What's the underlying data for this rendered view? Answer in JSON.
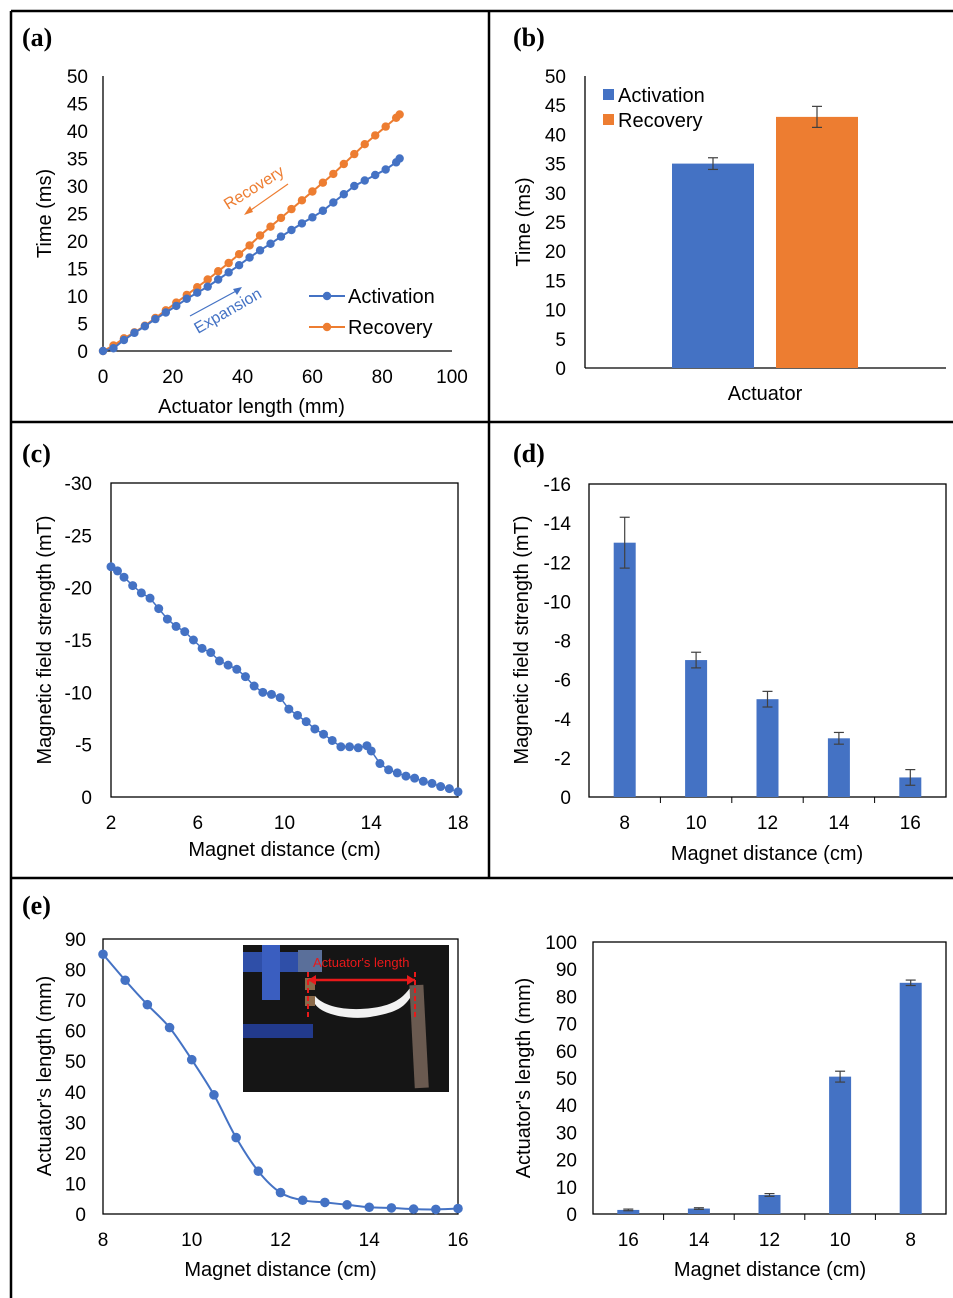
{
  "colors": {
    "blue": "#4472C4",
    "orange": "#ED7D31",
    "photo_label": "#E8191A"
  },
  "chart_data": [
    {
      "id": "a",
      "panel_label": "(a)",
      "type": "line",
      "xlabel": "Actuator length (mm)",
      "ylabel": "Time (ms)",
      "xlim": [
        0,
        100
      ],
      "ylim": [
        0,
        50
      ],
      "xticks": [
        0,
        20,
        40,
        60,
        80,
        100
      ],
      "yticks": [
        0,
        5,
        10,
        15,
        20,
        25,
        30,
        35,
        40,
        45,
        50
      ],
      "legend": "bottom-right",
      "annotations": [
        {
          "text": "Recovery",
          "color": "orange"
        },
        {
          "text": "Expansion",
          "color": "blue"
        }
      ],
      "series": [
        {
          "name": "Activation",
          "color": "blue",
          "x": [
            0,
            3,
            6,
            9,
            12,
            15,
            18,
            21,
            24,
            27,
            30,
            33,
            36,
            39,
            42,
            45,
            48,
            51,
            54,
            57,
            60,
            63,
            66,
            69,
            72,
            75,
            78,
            81,
            84,
            85
          ],
          "y": [
            0,
            0.5,
            2,
            3.3,
            4.5,
            5.8,
            7,
            8.2,
            9.5,
            10.6,
            11.7,
            13,
            14.3,
            15.6,
            17,
            18.3,
            19.5,
            20.8,
            22,
            23.2,
            24.3,
            25.5,
            27,
            28.5,
            30,
            31,
            32,
            33,
            34.3,
            35
          ]
        },
        {
          "name": "Recovery",
          "color": "orange",
          "x": [
            0,
            3,
            6,
            9,
            12,
            15,
            18,
            21,
            24,
            27,
            30,
            33,
            36,
            39,
            42,
            45,
            48,
            51,
            54,
            57,
            60,
            63,
            66,
            69,
            72,
            75,
            78,
            81,
            84,
            85
          ],
          "y": [
            0,
            1,
            2.3,
            3.4,
            4.6,
            6,
            7.4,
            8.8,
            10.2,
            11.6,
            13,
            14.5,
            16,
            17.6,
            19.2,
            21,
            22.6,
            24.2,
            25.8,
            27.4,
            29,
            30.6,
            32.2,
            34,
            35.8,
            37.6,
            39.2,
            40.8,
            42.4,
            43
          ]
        }
      ]
    },
    {
      "id": "b",
      "panel_label": "(b)",
      "type": "bar",
      "xlabel": "Actuator",
      "ylabel": "Time (ms)",
      "ylim": [
        0,
        50
      ],
      "yticks": [
        0,
        5,
        10,
        15,
        20,
        25,
        30,
        35,
        40,
        45,
        50
      ],
      "legend": "top-left",
      "series": [
        {
          "name": "Activation",
          "color": "blue",
          "value": 35,
          "error": 1
        },
        {
          "name": "Recovery",
          "color": "orange",
          "value": 43,
          "error": 1.8
        }
      ]
    },
    {
      "id": "c",
      "panel_label": "(c)",
      "type": "scatter",
      "xlabel": "Magnet distance (cm)",
      "ylabel": "Magnetic field strength (mT)",
      "xlim": [
        2,
        18
      ],
      "ylim": [
        0,
        -30
      ],
      "xticks": [
        2,
        6,
        10,
        14,
        18
      ],
      "yticks": [
        0,
        -5,
        -10,
        -15,
        -20,
        -25,
        -30
      ],
      "series": [
        {
          "color": "blue",
          "x": [
            2,
            2.3,
            2.6,
            3,
            3.4,
            3.8,
            4.2,
            4.6,
            5,
            5.4,
            5.8,
            6.2,
            6.6,
            7,
            7.4,
            7.8,
            8.2,
            8.6,
            9,
            9.4,
            9.8,
            10.2,
            10.6,
            11,
            11.4,
            11.8,
            12.2,
            12.6,
            13,
            13.4,
            13.8,
            14,
            14.4,
            14.8,
            15.2,
            15.6,
            16,
            16.4,
            16.8,
            17.2,
            17.6,
            18
          ],
          "y": [
            -22,
            -21.6,
            -21,
            -20.2,
            -19.5,
            -19,
            -18,
            -17,
            -16.3,
            -15.8,
            -15,
            -14.2,
            -13.8,
            -13,
            -12.6,
            -12.2,
            -11.5,
            -10.6,
            -10,
            -9.8,
            -9.5,
            -8.4,
            -7.8,
            -7.2,
            -6.5,
            -6,
            -5.4,
            -4.8,
            -4.8,
            -4.7,
            -4.9,
            -4.4,
            -3.2,
            -2.6,
            -2.3,
            -2,
            -1.8,
            -1.5,
            -1.3,
            -1.0,
            -0.8,
            -0.5
          ]
        }
      ]
    },
    {
      "id": "d",
      "panel_label": "(d)",
      "type": "bar",
      "xlabel": "Magnet distance (cm)",
      "ylabel": "Magnetic field strength (mT)",
      "ylim": [
        0,
        -16
      ],
      "yticks": [
        0,
        -2,
        -4,
        -6,
        -8,
        -10,
        -12,
        -14,
        -16
      ],
      "categories": [
        "8",
        "10",
        "12",
        "14",
        "16"
      ],
      "series": [
        {
          "color": "blue",
          "values": [
            -13,
            -7,
            -5,
            -3,
            -1
          ],
          "errors": [
            1.3,
            0.4,
            0.4,
            0.3,
            0.4
          ]
        }
      ]
    },
    {
      "id": "e1",
      "panel_label": "(e)",
      "type": "line",
      "xlabel": "Magnet distance (cm)",
      "ylabel": "Actuator's length (mm)",
      "xlim": [
        8,
        16
      ],
      "ylim": [
        0,
        90
      ],
      "xticks": [
        8,
        10,
        12,
        14,
        16
      ],
      "yticks": [
        0,
        10,
        20,
        30,
        40,
        50,
        60,
        70,
        80,
        90
      ],
      "series": [
        {
          "color": "blue",
          "x": [
            8,
            8.5,
            9,
            9.5,
            10,
            10.5,
            11,
            11.5,
            12,
            12.5,
            13,
            13.5,
            14,
            14.5,
            15,
            15.5,
            16
          ],
          "y": [
            85,
            76.5,
            68.5,
            61,
            50.5,
            39,
            25,
            14,
            7,
            4.5,
            3.8,
            3,
            2.2,
            2,
            1.6,
            1.5,
            1.8
          ]
        }
      ],
      "inset": {
        "label": "Actuator's length"
      }
    },
    {
      "id": "e2",
      "type": "bar",
      "xlabel": "Magnet distance (cm)",
      "ylabel": "Actuator's length (mm)",
      "ylim": [
        0,
        100
      ],
      "yticks": [
        0,
        10,
        20,
        30,
        40,
        50,
        60,
        70,
        80,
        90,
        100
      ],
      "categories": [
        "16",
        "14",
        "12",
        "10",
        "8"
      ],
      "series": [
        {
          "color": "blue",
          "values": [
            1.5,
            2,
            7,
            50.5,
            85
          ],
          "errors": [
            0.3,
            0.3,
            0.5,
            2,
            1
          ]
        }
      ]
    }
  ]
}
